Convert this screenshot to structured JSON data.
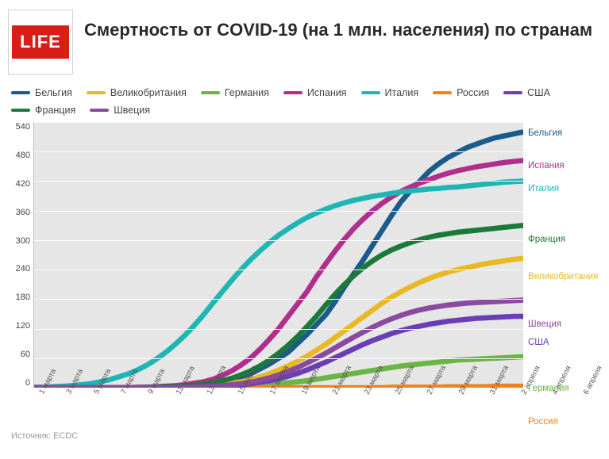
{
  "logo_text": "LIFE",
  "title": "Смертность от COVID-19 (на 1 млн. населения) по странам",
  "source": "Источник: ECDC",
  "chart": {
    "type": "line",
    "background_color": "#e6e6e6",
    "grid_color": "#fafafa",
    "ylim": [
      0,
      540
    ],
    "ytick_step": 60,
    "yticks": [
      540,
      480,
      420,
      360,
      300,
      240,
      180,
      120,
      60,
      0
    ],
    "x_labels": [
      "1 марта",
      "3 марта",
      "5 марта",
      "7 марта",
      "9 марта",
      "11 марта",
      "13 марта",
      "15 марта",
      "17 марта",
      "19 марта",
      "21 марта",
      "23 марта",
      "25 марта",
      "27 марта",
      "29 марта",
      "31 марта",
      "2 апреля",
      "4 апреля",
      "6 апреля",
      "8 апреля",
      "10 апреля",
      "12 апреля",
      "14 апреля",
      "16 апреля",
      "18 апреля",
      "20 апреля",
      "22 апреля"
    ],
    "x_count": 53,
    "line_width": 2.2,
    "marker_radius": 1.8,
    "label_fontsize": 11,
    "title_fontsize": 22,
    "title_color": "#2a2a2a",
    "axis_color": "#444",
    "series": [
      {
        "name": "Бельгия",
        "color": "#1a5b8c",
        "end_label": "Бельгия",
        "values": [
          0,
          0,
          0,
          0,
          0,
          0,
          0,
          0,
          0,
          0,
          0,
          0,
          1,
          1,
          2,
          2,
          4,
          4,
          6,
          8,
          12,
          16,
          22,
          28,
          38,
          48,
          60,
          72,
          90,
          108,
          128,
          148,
          175,
          205,
          232,
          260,
          290,
          320,
          350,
          378,
          400,
          420,
          440,
          455,
          468,
          478,
          488,
          495,
          502,
          508,
          512,
          516,
          520
        ]
      },
      {
        "name": "Великобритания",
        "color": "#e8b923",
        "end_label": "Великобритания",
        "values": [
          0,
          0,
          0,
          0,
          0,
          0,
          0,
          0,
          0,
          0,
          0,
          0,
          1,
          1,
          1,
          2,
          2,
          3,
          4,
          5,
          7,
          9,
          12,
          16,
          22,
          28,
          36,
          44,
          54,
          64,
          76,
          88,
          102,
          116,
          130,
          144,
          158,
          172,
          184,
          195,
          205,
          214,
          222,
          229,
          235,
          240,
          244,
          248,
          252,
          255,
          258,
          261,
          263
        ]
      },
      {
        "name": "Германия",
        "color": "#6ab544",
        "end_label": "Германия",
        "values": [
          0,
          0,
          0,
          0,
          0,
          0,
          0,
          0,
          0,
          0,
          0,
          0,
          0,
          0,
          0,
          0,
          0,
          1,
          1,
          1,
          2,
          2,
          3,
          4,
          5,
          6,
          8,
          10,
          12,
          14,
          17,
          20,
          23,
          26,
          29,
          32,
          35,
          38,
          41,
          44,
          46,
          48,
          50,
          52,
          54,
          56,
          57,
          58,
          59,
          60,
          61,
          62,
          63
        ]
      },
      {
        "name": "Испания",
        "color": "#b02f8c",
        "end_label": "Испания",
        "values": [
          0,
          0,
          0,
          0,
          0,
          0,
          0,
          0,
          0,
          0,
          0,
          1,
          1,
          2,
          3,
          4,
          6,
          9,
          12,
          17,
          25,
          34,
          46,
          60,
          78,
          98,
          120,
          145,
          170,
          195,
          225,
          252,
          278,
          302,
          324,
          343,
          360,
          375,
          388,
          399,
          408,
          416,
          423,
          430,
          436,
          441,
          445,
          449,
          452,
          455,
          458,
          460,
          462
        ]
      },
      {
        "name": "Италия",
        "color": "#1fb5b5",
        "end_label": "Италия",
        "values": [
          1,
          1,
          2,
          3,
          4,
          6,
          8,
          12,
          16,
          22,
          28,
          36,
          46,
          58,
          72,
          88,
          106,
          126,
          148,
          172,
          195,
          218,
          240,
          260,
          278,
          295,
          310,
          323,
          335,
          346,
          355,
          363,
          370,
          376,
          381,
          385,
          389,
          392,
          395,
          398,
          400,
          402,
          404,
          405,
          407,
          408,
          410,
          412,
          414,
          416,
          418,
          419,
          420
        ]
      },
      {
        "name": "Россия",
        "color": "#f0821e",
        "end_label": "Россия",
        "values": [
          0,
          0,
          0,
          0,
          0,
          0,
          0,
          0,
          0,
          0,
          0,
          0,
          0,
          0,
          0,
          0,
          0,
          0,
          0,
          0,
          0,
          0,
          0,
          0,
          0,
          0,
          0,
          0,
          0,
          0,
          0,
          0,
          0,
          0,
          0,
          0,
          0,
          0,
          1,
          1,
          1,
          1,
          1,
          1,
          2,
          2,
          2,
          2,
          2,
          3,
          3,
          3,
          3
        ]
      },
      {
        "name": "США",
        "color": "#6a3fb3",
        "end_label": "США",
        "values": [
          0,
          0,
          0,
          0,
          0,
          0,
          0,
          0,
          0,
          0,
          0,
          0,
          0,
          0,
          0,
          0,
          1,
          1,
          2,
          2,
          3,
          4,
          6,
          8,
          11,
          14,
          18,
          23,
          29,
          36,
          44,
          52,
          61,
          70,
          79,
          88,
          96,
          103,
          110,
          116,
          121,
          125,
          129,
          132,
          135,
          137,
          139,
          141,
          142,
          143,
          144,
          145,
          145
        ]
      },
      {
        "name": "Франция",
        "color": "#1b7a3a",
        "end_label": "Франция",
        "values": [
          0,
          0,
          0,
          0,
          0,
          0,
          0,
          0,
          0,
          0,
          0,
          0,
          1,
          1,
          2,
          2,
          4,
          5,
          7,
          10,
          14,
          19,
          26,
          34,
          44,
          56,
          70,
          86,
          104,
          124,
          145,
          168,
          190,
          210,
          228,
          244,
          258,
          270,
          280,
          288,
          295,
          301,
          306,
          310,
          313,
          316,
          318,
          320,
          322,
          324,
          326,
          328,
          330
        ]
      },
      {
        "name": "Швеция",
        "color": "#8a4a9e",
        "end_label": "Швеция",
        "values": [
          0,
          0,
          0,
          0,
          0,
          0,
          0,
          0,
          0,
          0,
          0,
          0,
          0,
          0,
          0,
          0,
          1,
          1,
          2,
          3,
          4,
          6,
          8,
          11,
          15,
          20,
          26,
          33,
          41,
          50,
          60,
          70,
          81,
          92,
          103,
          113,
          123,
          132,
          140,
          147,
          153,
          158,
          162,
          165,
          168,
          170,
          172,
          173,
          174,
          175,
          176,
          177,
          178
        ]
      }
    ]
  }
}
